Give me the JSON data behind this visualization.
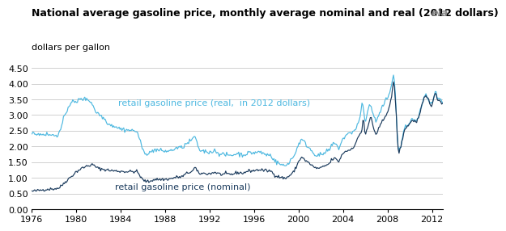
{
  "title": "National average gasoline price, monthly average nominal and real (2012 dollars)",
  "ylabel": "dollars per gallon",
  "xlim": [
    1976,
    2013
  ],
  "ylim": [
    0.0,
    4.5
  ],
  "yticks": [
    0.0,
    0.5,
    1.0,
    1.5,
    2.0,
    2.5,
    3.0,
    3.5,
    4.0,
    4.5
  ],
  "xticks": [
    1976,
    1980,
    1984,
    1988,
    1992,
    1996,
    2000,
    2004,
    2008,
    2012
  ],
  "color_real": "#4db8e0",
  "color_nominal": "#1a3a5c",
  "label_real": "retail gasoline price (real,  in 2012 dollars)",
  "label_nominal": "retail gasoline price (nominal)",
  "background_color": "#ffffff",
  "grid_color": "#c8c8c8",
  "title_fontsize": 9.0,
  "ylabel_fontsize": 8,
  "tick_fontsize": 8,
  "annotation_fontsize": 8,
  "logo_text": "eia",
  "anno_real_x": 1983.5,
  "anno_real_y": 3.55,
  "anno_nominal_x": 1983.5,
  "anno_nominal_y": 0.6
}
